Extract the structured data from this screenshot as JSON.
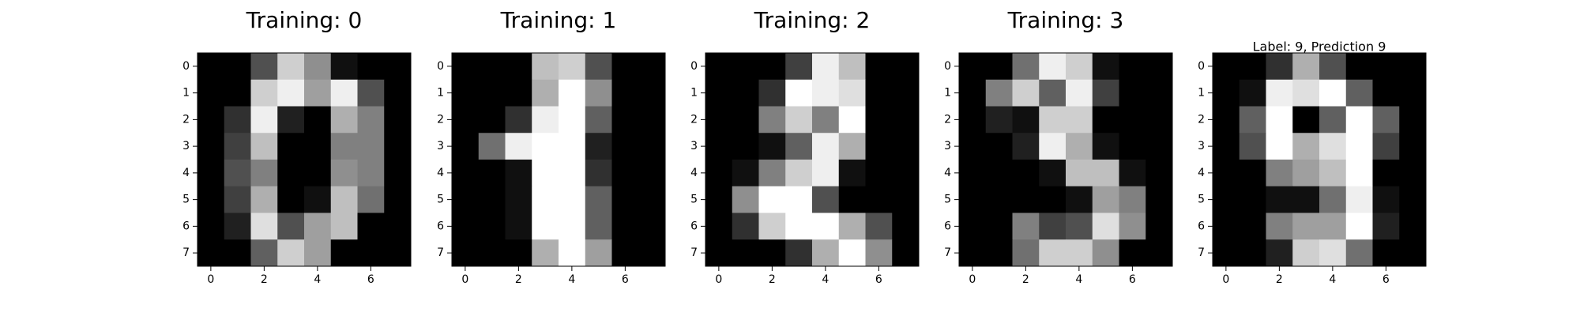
{
  "chart_data": [
    {
      "type": "heatmap",
      "title": "Training: 0",
      "x_ticks": [
        0,
        2,
        4,
        6
      ],
      "y_ticks": [
        0,
        1,
        2,
        3,
        4,
        5,
        6,
        7
      ],
      "xlim": [
        -0.5,
        7.5
      ],
      "ylim": [
        7.5,
        -0.5
      ],
      "colormap": "gray",
      "vmin": 0,
      "vmax": 16,
      "grid": false,
      "values": [
        [
          0,
          0,
          5,
          13,
          9,
          1,
          0,
          0
        ],
        [
          0,
          0,
          13,
          15,
          10,
          15,
          5,
          0
        ],
        [
          0,
          3,
          15,
          2,
          0,
          11,
          8,
          0
        ],
        [
          0,
          4,
          12,
          0,
          0,
          8,
          8,
          0
        ],
        [
          0,
          5,
          8,
          0,
          0,
          9,
          8,
          0
        ],
        [
          0,
          4,
          11,
          0,
          1,
          12,
          7,
          0
        ],
        [
          0,
          2,
          14,
          5,
          10,
          12,
          0,
          0
        ],
        [
          0,
          0,
          6,
          13,
          10,
          0,
          0,
          0
        ]
      ]
    },
    {
      "type": "heatmap",
      "title": "Training: 1",
      "x_ticks": [
        0,
        2,
        4,
        6
      ],
      "y_ticks": [
        0,
        1,
        2,
        3,
        4,
        5,
        6,
        7
      ],
      "xlim": [
        -0.5,
        7.5
      ],
      "ylim": [
        7.5,
        -0.5
      ],
      "colormap": "gray",
      "vmin": 0,
      "vmax": 16,
      "grid": false,
      "values": [
        [
          0,
          0,
          0,
          12,
          13,
          5,
          0,
          0
        ],
        [
          0,
          0,
          0,
          11,
          16,
          9,
          0,
          0
        ],
        [
          0,
          0,
          3,
          15,
          16,
          6,
          0,
          0
        ],
        [
          0,
          7,
          15,
          16,
          16,
          2,
          0,
          0
        ],
        [
          0,
          0,
          1,
          16,
          16,
          3,
          0,
          0
        ],
        [
          0,
          0,
          1,
          16,
          16,
          6,
          0,
          0
        ],
        [
          0,
          0,
          1,
          16,
          16,
          6,
          0,
          0
        ],
        [
          0,
          0,
          0,
          11,
          16,
          10,
          0,
          0
        ]
      ]
    },
    {
      "type": "heatmap",
      "title": "Training: 2",
      "x_ticks": [
        0,
        2,
        4,
        6
      ],
      "y_ticks": [
        0,
        1,
        2,
        3,
        4,
        5,
        6,
        7
      ],
      "xlim": [
        -0.5,
        7.5
      ],
      "ylim": [
        7.5,
        -0.5
      ],
      "colormap": "gray",
      "vmin": 0,
      "vmax": 16,
      "grid": false,
      "values": [
        [
          0,
          0,
          0,
          4,
          15,
          12,
          0,
          0
        ],
        [
          0,
          0,
          3,
          16,
          15,
          14,
          0,
          0
        ],
        [
          0,
          0,
          8,
          13,
          8,
          16,
          0,
          0
        ],
        [
          0,
          0,
          1,
          6,
          15,
          11,
          0,
          0
        ],
        [
          0,
          1,
          8,
          13,
          15,
          1,
          0,
          0
        ],
        [
          0,
          9,
          16,
          16,
          5,
          0,
          0,
          0
        ],
        [
          0,
          3,
          13,
          16,
          16,
          11,
          5,
          0
        ],
        [
          0,
          0,
          0,
          3,
          11,
          16,
          9,
          0
        ]
      ]
    },
    {
      "type": "heatmap",
      "title": "Training: 3",
      "x_ticks": [
        0,
        2,
        4,
        6
      ],
      "y_ticks": [
        0,
        1,
        2,
        3,
        4,
        5,
        6,
        7
      ],
      "xlim": [
        -0.5,
        7.5
      ],
      "ylim": [
        7.5,
        -0.5
      ],
      "colormap": "gray",
      "vmin": 0,
      "vmax": 16,
      "grid": false,
      "values": [
        [
          0,
          0,
          7,
          15,
          13,
          1,
          0,
          0
        ],
        [
          0,
          8,
          13,
          6,
          15,
          4,
          0,
          0
        ],
        [
          0,
          2,
          1,
          13,
          13,
          0,
          0,
          0
        ],
        [
          0,
          0,
          2,
          15,
          11,
          1,
          0,
          0
        ],
        [
          0,
          0,
          0,
          1,
          12,
          12,
          1,
          0
        ],
        [
          0,
          0,
          0,
          0,
          1,
          10,
          8,
          0
        ],
        [
          0,
          0,
          8,
          4,
          5,
          14,
          9,
          0
        ],
        [
          0,
          0,
          7,
          13,
          13,
          9,
          0,
          0
        ]
      ]
    },
    {
      "type": "heatmap",
      "title": "Label: 9, Prediction 9",
      "x_ticks": [
        0,
        2,
        4,
        6
      ],
      "y_ticks": [
        0,
        1,
        2,
        3,
        4,
        5,
        6,
        7
      ],
      "xlim": [
        -0.5,
        7.5
      ],
      "ylim": [
        7.5,
        -0.5
      ],
      "colormap": "gray",
      "vmin": 0,
      "vmax": 16,
      "grid": false,
      "values": [
        [
          0,
          0,
          3,
          11,
          5,
          0,
          0,
          0
        ],
        [
          0,
          1,
          15,
          14,
          16,
          6,
          0,
          0
        ],
        [
          0,
          6,
          16,
          0,
          6,
          16,
          6,
          0
        ],
        [
          0,
          5,
          16,
          11,
          14,
          16,
          4,
          0
        ],
        [
          0,
          0,
          8,
          10,
          12,
          16,
          0,
          0
        ],
        [
          0,
          0,
          1,
          1,
          7,
          15,
          1,
          0
        ],
        [
          0,
          0,
          8,
          10,
          10,
          16,
          2,
          0
        ],
        [
          0,
          0,
          2,
          13,
          14,
          7,
          0,
          0
        ]
      ]
    }
  ]
}
